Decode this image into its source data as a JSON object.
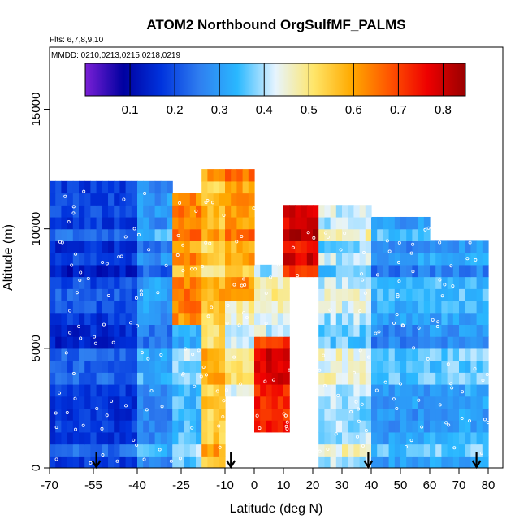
{
  "chart_data": {
    "type": "heatmap",
    "title": "ATOM2 Northbound OrgSulfMF_PALMS",
    "flights_note": "Flts: 6,7,8,9,10",
    "dates_note": "MMDD: 0210,0213,0215,0218,0219",
    "xlabel": "Latitude (deg N)",
    "ylabel": "Altitude (m)",
    "xlim": [
      -70,
      85
    ],
    "ylim": [
      0,
      17600
    ],
    "x_ticks": [
      -70,
      -55,
      -40,
      -25,
      -10,
      0,
      10,
      20,
      30,
      40,
      50,
      60,
      70,
      80
    ],
    "x_tick_labels": [
      "-70",
      "-55",
      "-40",
      "-25",
      "-10",
      "0",
      "10",
      "20",
      "30",
      "40",
      "50",
      "60",
      "70",
      "80"
    ],
    "y_ticks": [
      0,
      5000,
      10000,
      15000
    ],
    "y_tick_labels": [
      "0",
      "5000",
      "10000",
      "15000"
    ],
    "colorbar": {
      "min": 0.0,
      "max": 0.85,
      "ticks": [
        0.1,
        0.2,
        0.3,
        0.4,
        0.5,
        0.6,
        0.7,
        0.8
      ],
      "tick_labels": [
        "0.1",
        "0.2",
        "0.3",
        "0.4",
        "0.5",
        "0.6",
        "0.7",
        "0.8"
      ],
      "colors": [
        "#7a1fd6",
        "#0000a0",
        "#0033dd",
        "#2f7ef0",
        "#2ab8ff",
        "#e6f4ff",
        "#ffe66a",
        "#ffaa00",
        "#ff5500",
        "#ee0000",
        "#9a0000"
      ]
    },
    "altitude_bin_m": 500,
    "latitude_bin_deg": 2,
    "profile_latitudes": [
      -54,
      -8,
      39,
      76
    ],
    "profile_marker": "down-arrow",
    "field_description": "organic sulfate mass fraction",
    "regions": [
      {
        "lat": [
          -70,
          -40
        ],
        "alt": [
          0,
          12000
        ],
        "value": 0.18
      },
      {
        "lat": [
          -40,
          -28
        ],
        "alt": [
          0,
          12000
        ],
        "value": 0.28
      },
      {
        "lat": [
          -28,
          -18
        ],
        "alt": [
          6000,
          11500
        ],
        "value": 0.62
      },
      {
        "lat": [
          -28,
          -18
        ],
        "alt": [
          0,
          6000
        ],
        "value": 0.35
      },
      {
        "lat": [
          -18,
          -10
        ],
        "alt": [
          0,
          12500
        ],
        "value": 0.55
      },
      {
        "lat": [
          -10,
          0
        ],
        "alt": [
          7000,
          12500
        ],
        "value": 0.6
      },
      {
        "lat": [
          -10,
          0
        ],
        "alt": [
          3000,
          7000
        ],
        "value": 0.45
      },
      {
        "lat": [
          0,
          12
        ],
        "alt": [
          1500,
          5500
        ],
        "value": 0.74
      },
      {
        "lat": [
          0,
          12
        ],
        "alt": [
          5500,
          8500
        ],
        "value": 0.45
      },
      {
        "lat": [
          10,
          22
        ],
        "alt": [
          8000,
          11000
        ],
        "value": 0.78
      },
      {
        "lat": [
          22,
          40
        ],
        "alt": [
          0,
          11000
        ],
        "value": 0.4
      },
      {
        "lat": [
          40,
          60
        ],
        "alt": [
          0,
          10500
        ],
        "value": 0.3
      },
      {
        "lat": [
          60,
          80
        ],
        "alt": [
          0,
          9500
        ],
        "value": 0.32
      }
    ]
  }
}
